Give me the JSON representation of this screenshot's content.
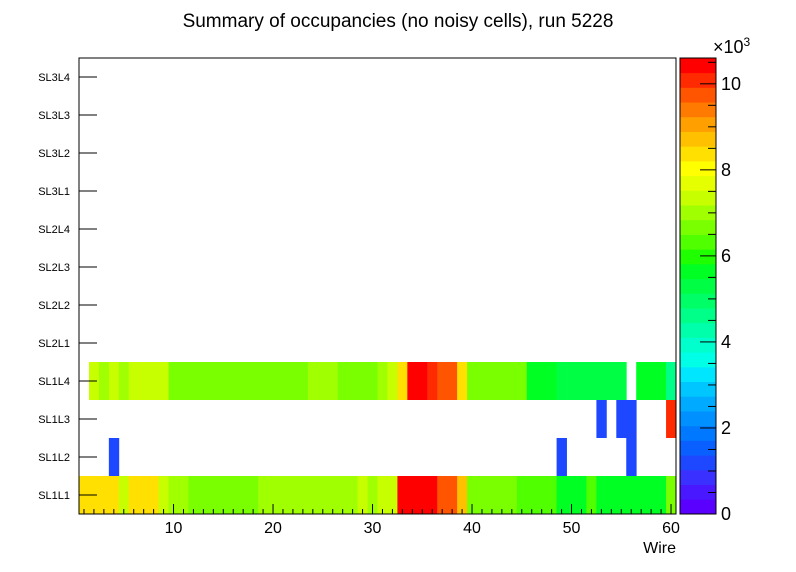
{
  "chart_data": {
    "type": "heatmap",
    "title": "Summary of occupancies (no noisy cells), run 5228",
    "xlabel": "Wire",
    "ylabel": "",
    "xlim": [
      0.5,
      60.5
    ],
    "x_ticks": [
      10,
      20,
      30,
      40,
      50,
      60
    ],
    "x_tick_labels": [
      "10",
      "20",
      "30",
      "40",
      "50",
      "60"
    ],
    "y_labels": [
      "SL1L1",
      "SL1L2",
      "SL1L3",
      "SL1L4",
      "SL2L1",
      "SL2L2",
      "SL2L3",
      "SL2L4",
      "SL3L1",
      "SL3L2",
      "SL3L3",
      "SL3L4"
    ],
    "z_range": [
      0,
      10600
    ],
    "z_ticks": [
      0,
      2,
      4,
      6,
      8,
      10
    ],
    "z_tick_labels": [
      "0",
      "2",
      "4",
      "6",
      "8",
      "10"
    ],
    "z_exponent_label": "×10",
    "z_exponent_power": "3",
    "palette": [
      "#5a00ff",
      "#4a18ff",
      "#3a30ff",
      "#1e48ff",
      "#0a60ff",
      "#0078ff",
      "#0090ff",
      "#00aaff",
      "#00c6ff",
      "#00e6ff",
      "#00ffe6",
      "#00ffcc",
      "#00ffaa",
      "#00ff88",
      "#00ff66",
      "#00ff44",
      "#00ff22",
      "#20ff00",
      "#50ff00",
      "#7aff00",
      "#a0ff00",
      "#c8ff00",
      "#e6ff00",
      "#ffff00",
      "#ffe000",
      "#ffc000",
      "#ffa000",
      "#ff7a00",
      "#ff5400",
      "#ff2a00",
      "#ff0000"
    ],
    "rows": [
      {
        "label": "SL1L1",
        "values": [
          8500,
          8500,
          8500,
          8500,
          7500,
          8500,
          8500,
          8500,
          7200,
          7000,
          6900,
          6800,
          6600,
          6600,
          6600,
          6800,
          6600,
          6600,
          6900,
          6900,
          6900,
          7000,
          7000,
          7000,
          6900,
          7000,
          6900,
          6900,
          7200,
          6900,
          7200,
          7200,
          10300,
          10300,
          10300,
          10300,
          9600,
          9600,
          8800,
          6600,
          6500,
          6500,
          6500,
          6500,
          6200,
          6200,
          6200,
          6200,
          5800,
          5800,
          5700,
          6200,
          5700,
          5700,
          5700,
          5700,
          5700,
          5700,
          5700,
          6800
        ]
      },
      {
        "label": "SL1L2",
        "values": [
          0,
          0,
          0,
          1100,
          0,
          0,
          0,
          0,
          0,
          0,
          0,
          0,
          0,
          0,
          0,
          0,
          0,
          0,
          0,
          0,
          0,
          0,
          0,
          0,
          0,
          0,
          0,
          0,
          0,
          0,
          0,
          0,
          0,
          0,
          0,
          0,
          0,
          0,
          0,
          0,
          0,
          0,
          0,
          0,
          0,
          0,
          0,
          0,
          1100,
          0,
          0,
          0,
          0,
          0,
          0,
          1100,
          0,
          0,
          0,
          0
        ]
      },
      {
        "label": "SL1L3",
        "values": [
          0,
          0,
          0,
          0,
          0,
          0,
          0,
          0,
          0,
          0,
          0,
          0,
          0,
          0,
          0,
          0,
          0,
          0,
          0,
          0,
          0,
          0,
          0,
          0,
          0,
          0,
          0,
          0,
          0,
          0,
          0,
          0,
          0,
          0,
          0,
          0,
          0,
          0,
          0,
          0,
          0,
          0,
          0,
          0,
          0,
          0,
          0,
          0,
          0,
          0,
          0,
          0,
          1100,
          0,
          1100,
          1100,
          0,
          0,
          0,
          10100
        ]
      },
      {
        "label": "SL1L4",
        "values": [
          0,
          7300,
          7000,
          7300,
          7000,
          7300,
          7300,
          7300,
          7300,
          6800,
          6800,
          6600,
          6600,
          6800,
          6800,
          6600,
          6600,
          6800,
          6800,
          6800,
          6800,
          6800,
          6800,
          7000,
          7000,
          7000,
          6600,
          6600,
          6600,
          6600,
          7000,
          7300,
          8500,
          10300,
          10300,
          10000,
          9600,
          9600,
          8500,
          6600,
          6600,
          6600,
          6600,
          6600,
          6600,
          5800,
          5800,
          5800,
          5400,
          5400,
          5400,
          5400,
          5400,
          5400,
          5400,
          0,
          5700,
          5700,
          5700,
          4500
        ]
      },
      {
        "label": "SL2L1",
        "values": []
      },
      {
        "label": "SL2L2",
        "values": []
      },
      {
        "label": "SL2L3",
        "values": []
      },
      {
        "label": "SL2L4",
        "values": []
      },
      {
        "label": "SL3L1",
        "values": []
      },
      {
        "label": "SL3L2",
        "values": []
      },
      {
        "label": "SL3L3",
        "values": []
      },
      {
        "label": "SL3L4",
        "values": []
      }
    ]
  }
}
